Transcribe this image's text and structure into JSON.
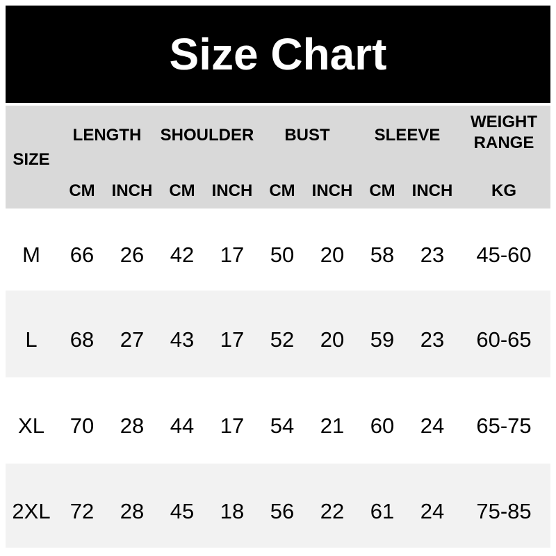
{
  "title": "Size Chart",
  "table": {
    "size_header": "SIZE",
    "groups": [
      "LENGTH",
      "SHOULDER",
      "BUST",
      "SLEEVE",
      "WEIGHT RANGE"
    ],
    "units": [
      "CM",
      "INCH",
      "CM",
      "INCH",
      "CM",
      "INCH",
      "CM",
      "INCH",
      "KG"
    ],
    "rows": [
      {
        "size": "M",
        "values": [
          "66",
          "26",
          "42",
          "17",
          "50",
          "20",
          "58",
          "23",
          "45-60"
        ]
      },
      {
        "size": "L",
        "values": [
          "68",
          "27",
          "43",
          "17",
          "52",
          "20",
          "59",
          "23",
          "60-65"
        ]
      },
      {
        "size": "XL",
        "values": [
          "70",
          "28",
          "44",
          "17",
          "54",
          "21",
          "60",
          "24",
          "65-75"
        ]
      },
      {
        "size": "2XL",
        "values": [
          "72",
          "28",
          "45",
          "18",
          "56",
          "22",
          "61",
          "24",
          "75-85"
        ]
      }
    ]
  },
  "colors": {
    "title_bg": "#000000",
    "title_text": "#ffffff",
    "header_bg": "#d9d9d9",
    "row_bg_white": "#ffffff",
    "row_bg_gray": "#f2f2f2",
    "text": "#000000",
    "page_bg": "#ffffff"
  }
}
